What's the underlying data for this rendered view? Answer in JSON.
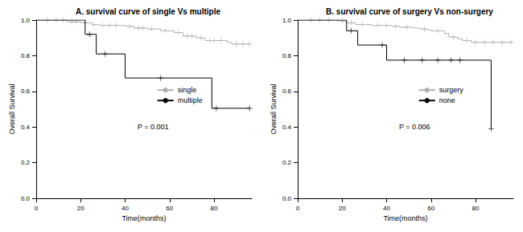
{
  "chart_data": [
    {
      "type": "line",
      "title": "A. survival curve of single Vs multiple",
      "x_label": "Time(months)",
      "y_label": "Overall Survival",
      "annotation": "P = 0.001",
      "xlim": [
        0,
        97
      ],
      "xticks": [
        0,
        20,
        40,
        60,
        80
      ],
      "ylim": [
        0,
        1
      ],
      "yticks": [
        {
          "value": 0,
          "label": "0.0"
        },
        {
          "value": 0.2,
          "label": "0.2"
        },
        {
          "value": 0.4,
          "label": "0.4"
        },
        {
          "value": 0.6,
          "label": "0.6"
        },
        {
          "value": 0.8,
          "label": "0.8"
        },
        {
          "value": 1,
          "label": "1.0"
        }
      ],
      "grid": false,
      "legend": "right",
      "series": [
        {
          "name": "single",
          "color": "#b0b0b0",
          "line_style": "solid",
          "marker": "plus",
          "x": [
            0,
            14,
            20,
            25,
            28,
            40,
            44,
            50,
            56,
            62,
            66,
            72,
            76,
            86,
            88,
            96
          ],
          "values": [
            1,
            0.99,
            0.985,
            0.975,
            0.97,
            0.965,
            0.955,
            0.95,
            0.94,
            0.93,
            0.91,
            0.9,
            0.885,
            0.875,
            0.865,
            0.865
          ],
          "censored": [
            [
              5,
              1
            ],
            [
              9,
              1
            ],
            [
              12,
              1
            ],
            [
              16,
              0.99
            ],
            [
              18,
              0.99
            ],
            [
              22,
              0.985
            ],
            [
              26,
              0.975
            ],
            [
              30,
              0.97
            ],
            [
              33,
              0.97
            ],
            [
              36,
              0.97
            ],
            [
              42,
              0.965
            ],
            [
              46,
              0.955
            ],
            [
              48,
              0.955
            ],
            [
              52,
              0.95
            ],
            [
              58,
              0.94
            ],
            [
              64,
              0.93
            ],
            [
              68,
              0.91
            ],
            [
              70,
              0.91
            ],
            [
              74,
              0.9
            ],
            [
              78,
              0.885
            ],
            [
              80,
              0.885
            ],
            [
              83,
              0.885
            ],
            [
              90,
              0.865
            ],
            [
              93,
              0.865
            ],
            [
              96,
              0.865
            ]
          ]
        },
        {
          "name": "multiple",
          "color": "#000000",
          "line_style": "solid",
          "marker": "plus",
          "x": [
            0,
            22,
            27,
            40,
            79,
            96
          ],
          "values": [
            1,
            0.92,
            0.81,
            0.675,
            0.505,
            0.505
          ],
          "censored": [
            [
              24,
              0.92
            ],
            [
              31,
              0.81
            ],
            [
              56,
              0.675
            ],
            [
              81,
              0.505
            ],
            [
              96,
              0.505
            ]
          ]
        }
      ]
    },
    {
      "type": "line",
      "title": "B. survival curve of surgery Vs non-surgery",
      "x_label": "Time(months)",
      "y_label": "Overall Survival",
      "annotation": "P = 0.006",
      "xlim": [
        0,
        97
      ],
      "xticks": [
        0,
        20,
        40,
        60,
        80
      ],
      "ylim": [
        0,
        1
      ],
      "yticks": [
        {
          "value": 0,
          "label": "0.0"
        },
        {
          "value": 0.2,
          "label": "0.2"
        },
        {
          "value": 0.4,
          "label": "0.4"
        },
        {
          "value": 0.6,
          "label": "0.6"
        },
        {
          "value": 0.8,
          "label": "0.8"
        },
        {
          "value": 1,
          "label": "1.0"
        }
      ],
      "grid": false,
      "legend": "right",
      "series": [
        {
          "name": "surgery",
          "color": "#b0b0b0",
          "line_style": "solid",
          "marker": "plus",
          "x": [
            0,
            18,
            22,
            26,
            33,
            42,
            46,
            52,
            55,
            58,
            60,
            66,
            68,
            72,
            74,
            78,
            96
          ],
          "values": [
            1,
            0.995,
            0.985,
            0.975,
            0.97,
            0.965,
            0.96,
            0.955,
            0.95,
            0.945,
            0.94,
            0.925,
            0.905,
            0.895,
            0.885,
            0.875,
            0.875
          ],
          "censored": [
            [
              6,
              1
            ],
            [
              10,
              1
            ],
            [
              14,
              1
            ],
            [
              20,
              0.995
            ],
            [
              24,
              0.985
            ],
            [
              29,
              0.975
            ],
            [
              36,
              0.97
            ],
            [
              40,
              0.97
            ],
            [
              44,
              0.965
            ],
            [
              49,
              0.96
            ],
            [
              57,
              0.95
            ],
            [
              63,
              0.94
            ],
            [
              70,
              0.905
            ],
            [
              76,
              0.885
            ],
            [
              80,
              0.875
            ],
            [
              84,
              0.875
            ],
            [
              88,
              0.875
            ],
            [
              92,
              0.875
            ],
            [
              96,
              0.875
            ]
          ]
        },
        {
          "name": "none",
          "color": "#000000",
          "line_style": "solid",
          "marker": "plus",
          "x": [
            0,
            22,
            27,
            40,
            87
          ],
          "values": [
            1,
            0.94,
            0.86,
            0.775,
            0.39
          ],
          "censored": [
            [
              24,
              0.94
            ],
            [
              38,
              0.86
            ],
            [
              48,
              0.775
            ],
            [
              56,
              0.775
            ],
            [
              63,
              0.775
            ],
            [
              69,
              0.775
            ],
            [
              73,
              0.775
            ],
            [
              87,
              0.39
            ]
          ]
        }
      ]
    }
  ]
}
